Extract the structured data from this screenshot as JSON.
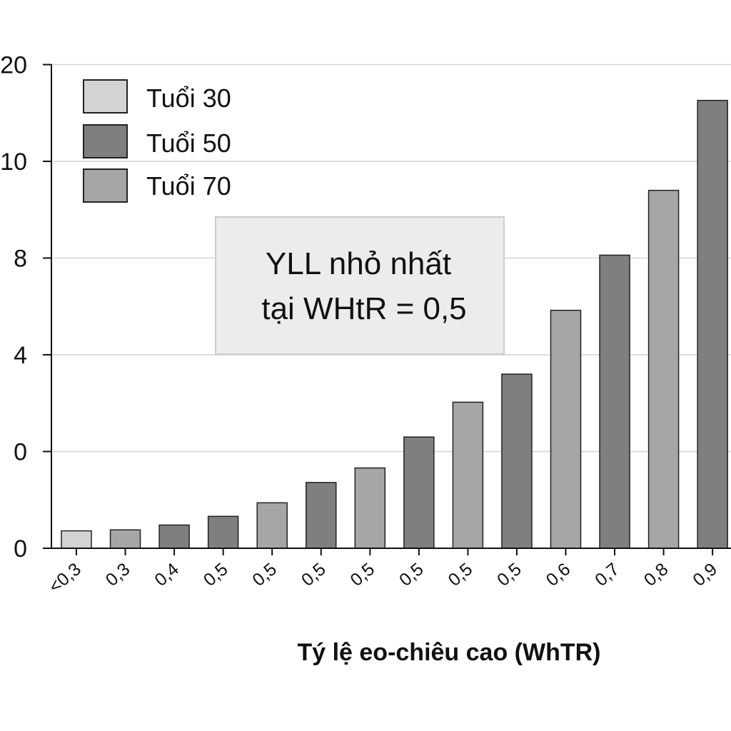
{
  "chart_data": {
    "type": "bar",
    "title": "",
    "xlabel": "Tý lệ eo-chiêu cao (WhTR)",
    "ylabel": "",
    "categories": [
      "<0,3",
      "0,3",
      "0,4",
      "0,5",
      "0,5",
      "0,5",
      "0,5",
      "0,5",
      "0,5",
      "0,5",
      "0,6",
      "0,7",
      "0,8",
      "0,9"
    ],
    "y_ticks": [
      "0",
      "0",
      "4",
      "8",
      "10",
      "20"
    ],
    "series": [
      {
        "name": "Tuổi 30",
        "color": "#d3d3d3"
      },
      {
        "name": "Tuổi 50",
        "color": "#7f7f7f"
      },
      {
        "name": "Tuổi 70",
        "color": "#a6a6a6"
      }
    ],
    "bars": [
      {
        "category": "<0,3",
        "series": "Tuổi 30",
        "tick_level": 0.18
      },
      {
        "category": "0,3",
        "series": "Tuổi 70",
        "tick_level": 0.19
      },
      {
        "category": "0,4",
        "series": "Tuổi 50",
        "tick_level": 0.24
      },
      {
        "category": "0,5",
        "series": "Tuổi 50",
        "tick_level": 0.33
      },
      {
        "category": "0,5",
        "series": "Tuổi 70",
        "tick_level": 0.47
      },
      {
        "category": "0,5",
        "series": "Tuổi 50",
        "tick_level": 0.68
      },
      {
        "category": "0,5",
        "series": "Tuổi 70",
        "tick_level": 0.83
      },
      {
        "category": "0,5",
        "series": "Tuổi 50",
        "tick_level": 1.15
      },
      {
        "category": "0,5",
        "series": "Tuổi 70",
        "tick_level": 1.51
      },
      {
        "category": "0,5",
        "series": "Tuổi 50",
        "tick_level": 1.8
      },
      {
        "category": "0,6",
        "series": "Tuổi 70",
        "tick_level": 2.46
      },
      {
        "category": "0,7",
        "series": "Tuổi 50",
        "tick_level": 3.03
      },
      {
        "category": "0,8",
        "series": "Tuổi 70",
        "tick_level": 3.7
      },
      {
        "category": "0,9",
        "series": "Tuổi 50",
        "tick_level": 4.63
      }
    ],
    "annotation": {
      "line1": "YLL nhỏ nhất",
      "line2": "tại WHtR = 0,5"
    },
    "grid": true,
    "legend_position": "top-left"
  }
}
